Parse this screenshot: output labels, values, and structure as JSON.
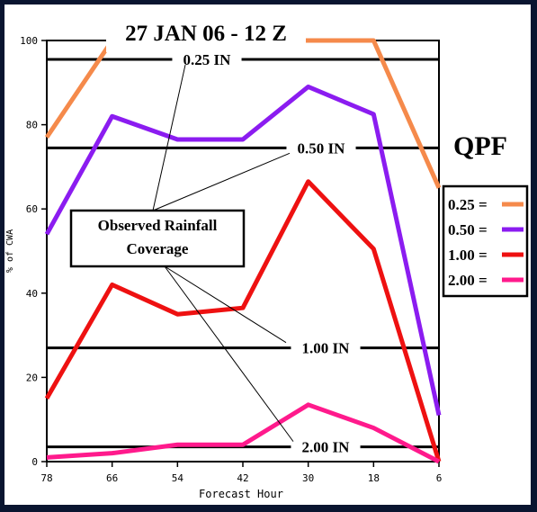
{
  "chart_data": {
    "type": "line",
    "title": "27 JAN 06 - 12 Z",
    "xlabel": "Forecast Hour",
    "ylabel": "% of CWA",
    "x": [
      78,
      66,
      54,
      42,
      30,
      18,
      6
    ],
    "x_reversed": true,
    "xlim": [
      78,
      6
    ],
    "ylim": [
      0,
      100
    ],
    "yticks": [
      0,
      20,
      40,
      60,
      80,
      100
    ],
    "grid": false,
    "legend_title": "QPF",
    "legend_position": "right",
    "series": [
      {
        "name": "0.25 =",
        "color": "#f58a4b",
        "values": [
          77,
          100,
          100,
          100,
          100,
          100,
          65
        ]
      },
      {
        "name": "0.50 =",
        "color": "#8b1cf0",
        "values": [
          54,
          82,
          76.5,
          76.5,
          89,
          82.5,
          11
        ]
      },
      {
        "name": "1.00 =",
        "color": "#ee1111",
        "values": [
          15,
          42,
          35,
          36.5,
          66.5,
          50.5,
          0
        ]
      },
      {
        "name": "2.00 =",
        "color": "#ff1a8c",
        "values": [
          1,
          2,
          4,
          4,
          13.5,
          8,
          0
        ]
      }
    ],
    "observed_lines": [
      {
        "label": "0.25 IN",
        "value": 95.5
      },
      {
        "label": "0.50 IN",
        "value": 74.5
      },
      {
        "label": "1.00 IN",
        "value": 27
      },
      {
        "label": "2.00 IN",
        "value": 3.5
      }
    ],
    "annotation": {
      "line1": "Observed Rainfall",
      "line2": "Coverage"
    }
  }
}
